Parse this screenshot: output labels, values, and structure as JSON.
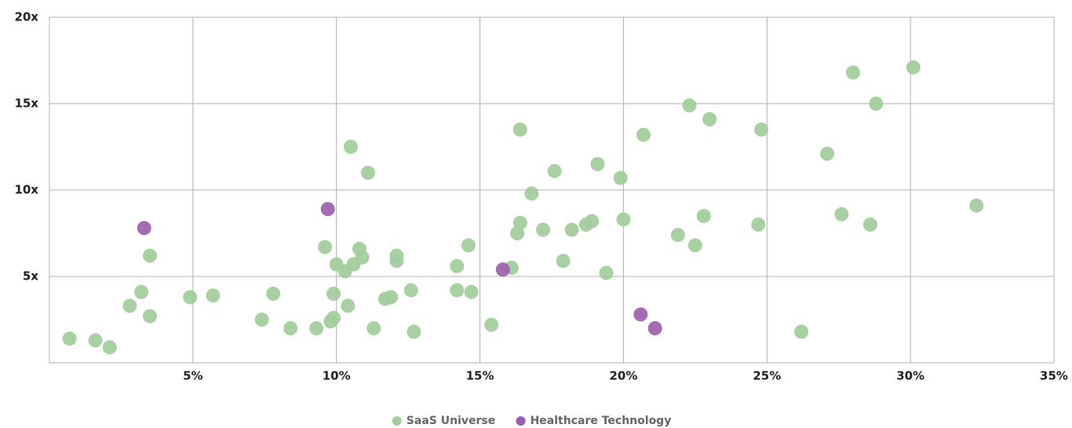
{
  "chart_data": {
    "type": "scatter",
    "xlim": [
      0,
      35
    ],
    "xticks": [
      {
        "value": 5,
        "label": "5%"
      },
      {
        "value": 10,
        "label": "10%"
      },
      {
        "value": 15,
        "label": "15%"
      },
      {
        "value": 20,
        "label": "20%"
      },
      {
        "value": 25,
        "label": "25%"
      },
      {
        "value": 30,
        "label": "30%"
      },
      {
        "value": 35,
        "label": "35%"
      }
    ],
    "ylim": [
      0,
      20
    ],
    "yticks": [
      {
        "value": 5,
        "label": "5x"
      },
      {
        "value": 10,
        "label": "10x"
      },
      {
        "value": 15,
        "label": "15x"
      },
      {
        "value": 20,
        "label": "20x"
      }
    ],
    "grid": true,
    "legend": "bottom",
    "series": [
      {
        "name": "SaaS Universe",
        "color": "#a2cc9b",
        "x": [
          0.7,
          1.6,
          2.1,
          2.8,
          3.2,
          3.5,
          3.5,
          4.9,
          5.7,
          7.4,
          7.8,
          8.4,
          9.3,
          9.6,
          9.8,
          9.9,
          9.9,
          10.0,
          10.3,
          10.4,
          10.5,
          10.6,
          10.8,
          10.9,
          11.1,
          11.3,
          11.7,
          11.9,
          12.1,
          12.1,
          12.6,
          12.7,
          14.2,
          14.2,
          14.6,
          14.7,
          15.4,
          16.1,
          16.3,
          16.4,
          16.4,
          16.8,
          17.2,
          17.6,
          17.9,
          18.2,
          18.7,
          18.9,
          19.1,
          19.4,
          19.9,
          20.0,
          20.7,
          21.9,
          22.3,
          22.5,
          22.8,
          23.0,
          24.7,
          24.8,
          26.2,
          27.1,
          27.6,
          28.0,
          28.6,
          28.8,
          30.1,
          32.3
        ],
        "values": [
          1.4,
          1.3,
          0.9,
          3.3,
          4.1,
          6.2,
          2.7,
          3.8,
          3.9,
          2.5,
          4.0,
          2.0,
          2.0,
          6.7,
          2.4,
          2.6,
          4.0,
          5.7,
          5.3,
          3.3,
          12.5,
          5.7,
          6.6,
          6.1,
          11.0,
          2.0,
          3.7,
          3.8,
          6.2,
          5.9,
          4.2,
          1.8,
          5.6,
          4.2,
          6.8,
          4.1,
          2.2,
          5.5,
          7.5,
          8.1,
          13.5,
          9.8,
          7.7,
          11.1,
          5.9,
          7.7,
          8.0,
          8.2,
          11.5,
          5.2,
          10.7,
          8.3,
          13.2,
          7.4,
          14.9,
          6.8,
          8.5,
          14.1,
          8.0,
          13.5,
          1.8,
          12.1,
          8.6,
          16.8,
          8.0,
          15.0,
          17.1,
          9.1
        ]
      },
      {
        "name": "Healthcare Technology",
        "color": "#9b5fad",
        "x": [
          3.3,
          9.7,
          15.8,
          20.6,
          21.1
        ],
        "values": [
          7.8,
          8.9,
          5.4,
          2.8,
          2.0
        ]
      }
    ]
  }
}
